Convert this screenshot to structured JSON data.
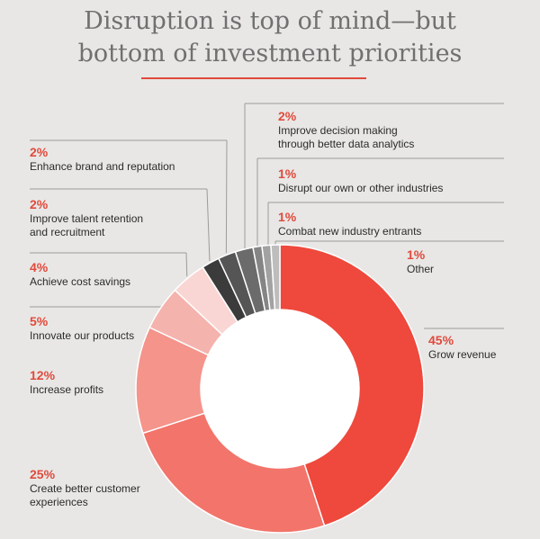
{
  "title": {
    "line1": "Disruption is top of mind—but",
    "line2": "bottom of investment priorities"
  },
  "colors": {
    "accent": "#e04a3c",
    "leader": "#9b9b9b"
  },
  "chart_data": {
    "type": "pie",
    "donut": true,
    "slices": [
      {
        "pct": "45%",
        "value": 45,
        "label": [
          "Grow revenue"
        ],
        "color": "#ef483c"
      },
      {
        "pct": "25%",
        "value": 25,
        "label": [
          "Create better customer",
          "experiences"
        ],
        "color": "#f2746a"
      },
      {
        "pct": "12%",
        "value": 12,
        "label": [
          "Increase profits"
        ],
        "color": "#f4948b"
      },
      {
        "pct": "5%",
        "value": 5,
        "label": [
          "Innovate our products"
        ],
        "color": "#f5b3ad"
      },
      {
        "pct": "4%",
        "value": 4,
        "label": [
          "Achieve cost savings"
        ],
        "color": "#f9d6d3"
      },
      {
        "pct": "2%",
        "value": 2,
        "label": [
          "Improve talent retention",
          "and recruitment"
        ],
        "color": "#3b3b3b"
      },
      {
        "pct": "2%",
        "value": 2,
        "label": [
          "Enhance brand and reputation"
        ],
        "color": "#555555"
      },
      {
        "pct": "2%",
        "value": 2,
        "label": [
          "Improve decision making",
          "through better data analytics"
        ],
        "color": "#6b6b6b"
      },
      {
        "pct": "1%",
        "value": 1,
        "label": [
          "Disrupt our own or other industries"
        ],
        "color": "#858585"
      },
      {
        "pct": "1%",
        "value": 1,
        "label": [
          "Combat new industry entrants"
        ],
        "color": "#a2a2a2"
      },
      {
        "pct": "1%",
        "value": 1,
        "label": [
          "Other"
        ],
        "color": "#bdbdbd"
      }
    ]
  }
}
